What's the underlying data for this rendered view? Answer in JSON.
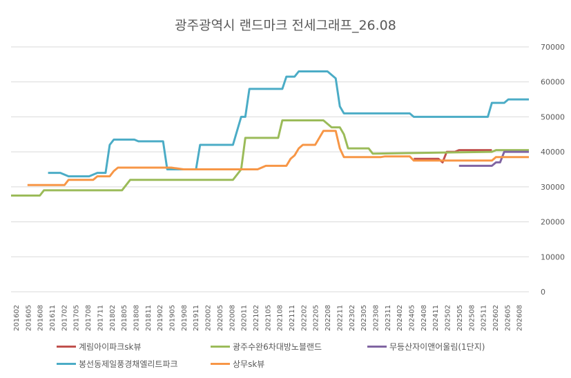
{
  "chart_data": {
    "type": "line",
    "title": "광주광역시 랜드마크 전세그래프_26.08",
    "ylim": [
      0,
      70000
    ],
    "yticks": [
      "0",
      "10000",
      "20000",
      "30000",
      "40000",
      "50000",
      "60000",
      "70000"
    ],
    "ytick_values": [
      0,
      10000,
      20000,
      30000,
      40000,
      50000,
      60000,
      70000
    ],
    "x_range": [
      "2016-02",
      "2026-08"
    ],
    "xtick_labels": [
      "201602",
      "201605",
      "201608",
      "201611",
      "201702",
      "201705",
      "201708",
      "201711",
      "201802",
      "201805",
      "201808",
      "201811",
      "201902",
      "201905",
      "201908",
      "201911",
      "202002",
      "202005",
      "202008",
      "202011",
      "202102",
      "202105",
      "202108",
      "202111",
      "202202",
      "202205",
      "202208",
      "202211",
      "202302",
      "202305",
      "202308",
      "202311",
      "202402",
      "202405",
      "202408",
      "202411",
      "202502",
      "202505",
      "202508",
      "202511",
      "202602",
      "202605",
      "202608"
    ],
    "grid": true,
    "legend_position": "bottom",
    "series": [
      {
        "name": "계림아이파크sk뷰",
        "color": "#c0504d",
        "points": [
          [
            "2024-04",
            38000
          ],
          [
            "2024-10",
            38000
          ],
          [
            "2024-11",
            37000
          ],
          [
            "2024-12",
            40000
          ],
          [
            "2025-02",
            40000
          ],
          [
            "2025-03",
            40500
          ],
          [
            "2025-11",
            40500
          ]
        ]
      },
      {
        "name": "광주수완6차대방노블랜드",
        "color": "#9bbb59",
        "points": [
          [
            "2016-02",
            27500
          ],
          [
            "2016-09",
            27500
          ],
          [
            "2016-10",
            29000
          ],
          [
            "2018-05",
            29000
          ],
          [
            "2018-07",
            32000
          ],
          [
            "2020-08",
            32000
          ],
          [
            "2020-10",
            35000
          ],
          [
            "2020-11",
            44000
          ],
          [
            "2021-07",
            44000
          ],
          [
            "2021-08",
            49000
          ],
          [
            "2022-06",
            49000
          ],
          [
            "2022-08",
            47000
          ],
          [
            "2022-10",
            47000
          ],
          [
            "2022-11",
            45000
          ],
          [
            "2022-12",
            41000
          ],
          [
            "2023-05",
            41000
          ],
          [
            "2023-06",
            39500
          ],
          [
            "2025-11",
            40000
          ],
          [
            "2025-12",
            40500
          ],
          [
            "2026-08",
            40500
          ]
        ]
      },
      {
        "name": "무등산자이앤어울림(1단지)",
        "color": "#8064a2",
        "points": [
          [
            "2025-03",
            36000
          ],
          [
            "2025-11",
            36000
          ],
          [
            "2025-12",
            37000
          ],
          [
            "2026-01",
            37000
          ],
          [
            "2026-02",
            40000
          ],
          [
            "2026-08",
            40000
          ]
        ]
      },
      {
        "name": "봉선동제일풍경채엘리트파크",
        "color": "#4bacc6",
        "points": [
          [
            "2016-11",
            34000
          ],
          [
            "2017-02",
            34000
          ],
          [
            "2017-04",
            33000
          ],
          [
            "2017-09",
            33000
          ],
          [
            "2017-11",
            34000
          ],
          [
            "2018-01",
            34000
          ],
          [
            "2018-02",
            42000
          ],
          [
            "2018-03",
            43500
          ],
          [
            "2018-08",
            43500
          ],
          [
            "2018-09",
            43000
          ],
          [
            "2019-03",
            43000
          ],
          [
            "2019-04",
            35000
          ],
          [
            "2019-11",
            35000
          ],
          [
            "2019-12",
            42000
          ],
          [
            "2020-08",
            42000
          ],
          [
            "2020-10",
            50000
          ],
          [
            "2020-11",
            50000
          ],
          [
            "2020-12",
            58000
          ],
          [
            "2021-08",
            58000
          ],
          [
            "2021-09",
            61500
          ],
          [
            "2021-11",
            61500
          ],
          [
            "2021-12",
            63000
          ],
          [
            "2022-07",
            63000
          ],
          [
            "2022-09",
            61000
          ],
          [
            "2022-10",
            53000
          ],
          [
            "2022-11",
            51000
          ],
          [
            "2024-03",
            51000
          ],
          [
            "2024-04",
            50000
          ],
          [
            "2025-10",
            50000
          ],
          [
            "2025-11",
            54000
          ],
          [
            "2026-02",
            54000
          ],
          [
            "2026-03",
            55000
          ],
          [
            "2026-08",
            55000
          ]
        ]
      },
      {
        "name": "상무sk뷰",
        "color": "#f79646",
        "points": [
          [
            "2016-06",
            30500
          ],
          [
            "2017-03",
            30500
          ],
          [
            "2017-04",
            32000
          ],
          [
            "2017-10",
            32000
          ],
          [
            "2017-11",
            33000
          ],
          [
            "2018-02",
            33000
          ],
          [
            "2018-03",
            34500
          ],
          [
            "2018-04",
            35500
          ],
          [
            "2019-05",
            35500
          ],
          [
            "2019-08",
            35000
          ],
          [
            "2020-08",
            35000
          ],
          [
            "2021-02",
            35000
          ],
          [
            "2021-04",
            36000
          ],
          [
            "2021-09",
            36000
          ],
          [
            "2021-10",
            38000
          ],
          [
            "2021-11",
            39000
          ],
          [
            "2021-12",
            41000
          ],
          [
            "2022-01",
            42000
          ],
          [
            "2022-04",
            42000
          ],
          [
            "2022-06",
            46000
          ],
          [
            "2022-09",
            46000
          ],
          [
            "2022-10",
            41000
          ],
          [
            "2022-11",
            38500
          ],
          [
            "2023-08",
            38500
          ],
          [
            "2023-09",
            38700
          ],
          [
            "2024-03",
            38700
          ],
          [
            "2024-04",
            37500
          ],
          [
            "2025-11",
            37500
          ],
          [
            "2025-12",
            38500
          ],
          [
            "2026-08",
            38500
          ]
        ]
      }
    ],
    "legend": [
      {
        "label": "계림아이파크sk뷰",
        "series": 0
      },
      {
        "label": "광주수완6차대방노블랜드",
        "series": 1
      },
      {
        "label": "무등산자이앤어울림(1단지)",
        "series": 2
      },
      {
        "label": "봉선동제일풍경채엘리트파크",
        "series": 3
      },
      {
        "label": "상무sk뷰",
        "series": 4
      }
    ]
  }
}
